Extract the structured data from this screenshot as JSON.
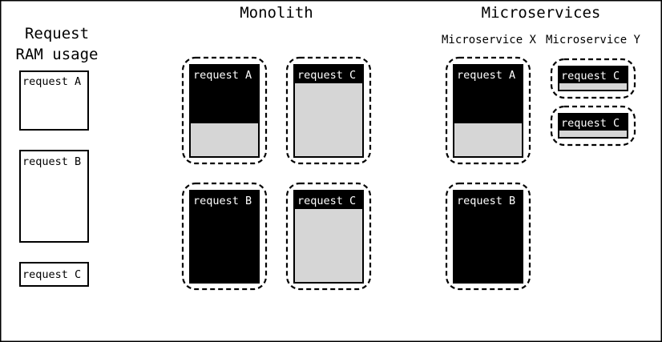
{
  "headings": {
    "request_ram_line1": "Request",
    "request_ram_line2": "RAM usage",
    "monolith": "Monolith",
    "microservices": "Microservices",
    "microservice_x": "Microservice X",
    "microservice_y": "Microservice Y"
  },
  "legend": [
    {
      "label": "request A"
    },
    {
      "label": "request B"
    },
    {
      "label": "request C"
    }
  ],
  "monolith": {
    "instances": [
      {
        "label": "request A",
        "used_fraction": 0.63
      },
      {
        "label": "request C",
        "used_fraction": 0.2
      },
      {
        "label": "request B",
        "used_fraction": 1.0
      },
      {
        "label": "request C",
        "used_fraction": 0.2
      }
    ]
  },
  "microservices": {
    "x_instances": [
      {
        "label": "request A",
        "used_fraction": 0.63
      },
      {
        "label": "request B",
        "used_fraction": 1.0
      }
    ],
    "y_instances": [
      {
        "label": "request C",
        "used_fraction": 0.7
      },
      {
        "label": "request C",
        "used_fraction": 0.7
      }
    ]
  },
  "colors": {
    "used": "#000000",
    "free": "#d6d6d6",
    "legend_fill": "#ffffff"
  }
}
